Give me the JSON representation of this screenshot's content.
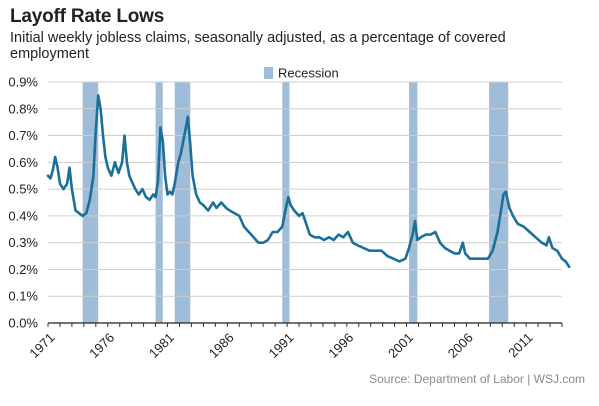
{
  "chart_data": {
    "type": "line",
    "title": "Layoff Rate Lows",
    "subtitle": "Initial weekly jobless claims, seasonally adjusted, as a percentage of covered employment",
    "xlabel": "",
    "ylabel": "",
    "xlim": [
      1971,
      2014
    ],
    "ylim": [
      0,
      0.9
    ],
    "y_ticks": [
      "0.0%",
      "0.1%",
      "0.2%",
      "0.3%",
      "0.4%",
      "0.5%",
      "0.6%",
      "0.7%",
      "0.8%",
      "0.9%"
    ],
    "x_ticks": [
      "1971",
      "1976",
      "1981",
      "1986",
      "1991",
      "1996",
      "2001",
      "2006",
      "2011"
    ],
    "grid": true,
    "legend": {
      "position": "top",
      "entries": [
        {
          "label": "Recession",
          "color": "#9fbcd8"
        }
      ]
    },
    "recessions": [
      {
        "start": 1973.9,
        "end": 1975.2
      },
      {
        "start": 1980.0,
        "end": 1980.6
      },
      {
        "start": 1981.6,
        "end": 1982.9
      },
      {
        "start": 1990.6,
        "end": 1991.2
      },
      {
        "start": 2001.2,
        "end": 2001.9
      },
      {
        "start": 2007.9,
        "end": 2009.5
      }
    ],
    "series": [
      {
        "color": "#1a7099",
        "points": [
          [
            1971.0,
            0.55
          ],
          [
            1971.2,
            0.54
          ],
          [
            1971.4,
            0.57
          ],
          [
            1971.6,
            0.62
          ],
          [
            1971.8,
            0.58
          ],
          [
            1972.0,
            0.52
          ],
          [
            1972.3,
            0.5
          ],
          [
            1972.6,
            0.52
          ],
          [
            1972.8,
            0.58
          ],
          [
            1973.0,
            0.5
          ],
          [
            1973.3,
            0.42
          ],
          [
            1973.6,
            0.41
          ],
          [
            1973.9,
            0.4
          ],
          [
            1974.2,
            0.41
          ],
          [
            1974.5,
            0.46
          ],
          [
            1974.8,
            0.55
          ],
          [
            1975.0,
            0.72
          ],
          [
            1975.2,
            0.85
          ],
          [
            1975.4,
            0.8
          ],
          [
            1975.6,
            0.7
          ],
          [
            1975.8,
            0.62
          ],
          [
            1976.0,
            0.58
          ],
          [
            1976.3,
            0.55
          ],
          [
            1976.6,
            0.6
          ],
          [
            1976.9,
            0.56
          ],
          [
            1977.2,
            0.6
          ],
          [
            1977.4,
            0.7
          ],
          [
            1977.6,
            0.6
          ],
          [
            1977.8,
            0.55
          ],
          [
            1978.0,
            0.53
          ],
          [
            1978.3,
            0.5
          ],
          [
            1978.6,
            0.48
          ],
          [
            1978.9,
            0.5
          ],
          [
            1979.2,
            0.47
          ],
          [
            1979.5,
            0.46
          ],
          [
            1979.8,
            0.48
          ],
          [
            1980.0,
            0.47
          ],
          [
            1980.2,
            0.53
          ],
          [
            1980.4,
            0.73
          ],
          [
            1980.6,
            0.68
          ],
          [
            1980.8,
            0.55
          ],
          [
            1981.0,
            0.48
          ],
          [
            1981.2,
            0.49
          ],
          [
            1981.4,
            0.48
          ],
          [
            1981.6,
            0.52
          ],
          [
            1981.9,
            0.6
          ],
          [
            1982.1,
            0.63
          ],
          [
            1982.4,
            0.7
          ],
          [
            1982.7,
            0.77
          ],
          [
            1982.9,
            0.67
          ],
          [
            1983.1,
            0.55
          ],
          [
            1983.4,
            0.48
          ],
          [
            1983.7,
            0.45
          ],
          [
            1984.0,
            0.44
          ],
          [
            1984.4,
            0.42
          ],
          [
            1984.8,
            0.45
          ],
          [
            1985.1,
            0.43
          ],
          [
            1985.5,
            0.45
          ],
          [
            1985.9,
            0.43
          ],
          [
            1986.2,
            0.42
          ],
          [
            1986.6,
            0.41
          ],
          [
            1987.0,
            0.4
          ],
          [
            1987.4,
            0.36
          ],
          [
            1987.8,
            0.34
          ],
          [
            1988.2,
            0.32
          ],
          [
            1988.6,
            0.3
          ],
          [
            1989.0,
            0.3
          ],
          [
            1989.4,
            0.31
          ],
          [
            1989.8,
            0.34
          ],
          [
            1990.2,
            0.34
          ],
          [
            1990.6,
            0.36
          ],
          [
            1990.9,
            0.43
          ],
          [
            1991.1,
            0.47
          ],
          [
            1991.3,
            0.44
          ],
          [
            1991.6,
            0.42
          ],
          [
            1992.0,
            0.4
          ],
          [
            1992.3,
            0.41
          ],
          [
            1992.6,
            0.37
          ],
          [
            1992.9,
            0.33
          ],
          [
            1993.3,
            0.32
          ],
          [
            1993.7,
            0.32
          ],
          [
            1994.1,
            0.31
          ],
          [
            1994.5,
            0.32
          ],
          [
            1994.9,
            0.31
          ],
          [
            1995.3,
            0.33
          ],
          [
            1995.7,
            0.32
          ],
          [
            1996.1,
            0.34
          ],
          [
            1996.5,
            0.3
          ],
          [
            1996.9,
            0.29
          ],
          [
            1997.4,
            0.28
          ],
          [
            1997.9,
            0.27
          ],
          [
            1998.4,
            0.27
          ],
          [
            1998.9,
            0.27
          ],
          [
            1999.4,
            0.25
          ],
          [
            1999.9,
            0.24
          ],
          [
            2000.4,
            0.23
          ],
          [
            2000.9,
            0.24
          ],
          [
            2001.2,
            0.28
          ],
          [
            2001.5,
            0.33
          ],
          [
            2001.7,
            0.38
          ],
          [
            2001.9,
            0.31
          ],
          [
            2002.2,
            0.32
          ],
          [
            2002.6,
            0.33
          ],
          [
            2003.0,
            0.33
          ],
          [
            2003.4,
            0.34
          ],
          [
            2003.8,
            0.3
          ],
          [
            2004.2,
            0.28
          ],
          [
            2004.6,
            0.27
          ],
          [
            2005.0,
            0.26
          ],
          [
            2005.4,
            0.26
          ],
          [
            2005.7,
            0.3
          ],
          [
            2005.9,
            0.26
          ],
          [
            2006.3,
            0.24
          ],
          [
            2006.8,
            0.24
          ],
          [
            2007.3,
            0.24
          ],
          [
            2007.8,
            0.24
          ],
          [
            2008.2,
            0.27
          ],
          [
            2008.6,
            0.34
          ],
          [
            2008.9,
            0.42
          ],
          [
            2009.1,
            0.48
          ],
          [
            2009.3,
            0.49
          ],
          [
            2009.6,
            0.43
          ],
          [
            2009.9,
            0.4
          ],
          [
            2010.3,
            0.37
          ],
          [
            2010.8,
            0.36
          ],
          [
            2011.3,
            0.34
          ],
          [
            2011.8,
            0.32
          ],
          [
            2012.3,
            0.3
          ],
          [
            2012.7,
            0.29
          ],
          [
            2012.9,
            0.32
          ],
          [
            2013.2,
            0.28
          ],
          [
            2013.6,
            0.27
          ],
          [
            2014.0,
            0.24
          ],
          [
            2014.3,
            0.23
          ],
          [
            2014.6,
            0.21
          ]
        ]
      }
    ],
    "source": "Source: Department of Labor  |  WSJ.com"
  }
}
